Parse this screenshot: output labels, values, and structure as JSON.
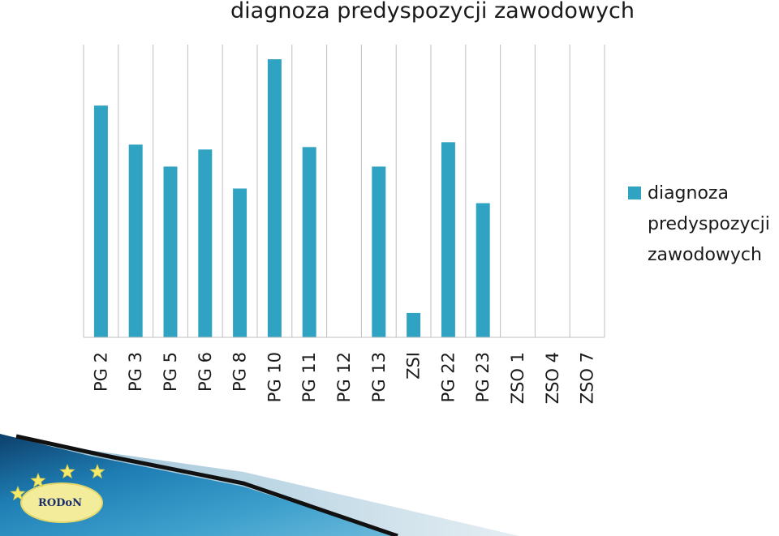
{
  "chart_data": {
    "type": "bar",
    "title": "diagnoza predyspozycji zawodowych",
    "categories": [
      "PG 2",
      "PG 3",
      "PG 5",
      "PG 6",
      "PG 8",
      "PG 10",
      "PG 11",
      "PG 12",
      "PG 13",
      "ZSI",
      "PG 22",
      "PG 23",
      "ZSO 1",
      "ZSO 4",
      "ZSO 7"
    ],
    "series": [
      {
        "name": "diagnoza predyspozycji zawodowych",
        "values": [
          95,
          79,
          70,
          77,
          61,
          114,
          78,
          0,
          70,
          10,
          80,
          55,
          0,
          0,
          0
        ],
        "color": "#31a3c2"
      }
    ],
    "ylim": [
      0,
      120
    ],
    "grid": "vertical",
    "legend_placement": "right",
    "xlabel": "",
    "ylabel": ""
  },
  "legend": {
    "label_lines": [
      "diagnoza",
      "predyspozycji",
      "zawodowych"
    ]
  },
  "logo": {
    "text": "RODoN"
  },
  "colors": {
    "bar": "#31a3c2",
    "grid": "#bfbfbf",
    "banner_dark": "#0d3f6b",
    "banner_mid": "#1f7fb5",
    "banner_light": "#d3e3ec",
    "logo_fill": "#f3ec9a",
    "logo_star": "#f6ea6a"
  }
}
